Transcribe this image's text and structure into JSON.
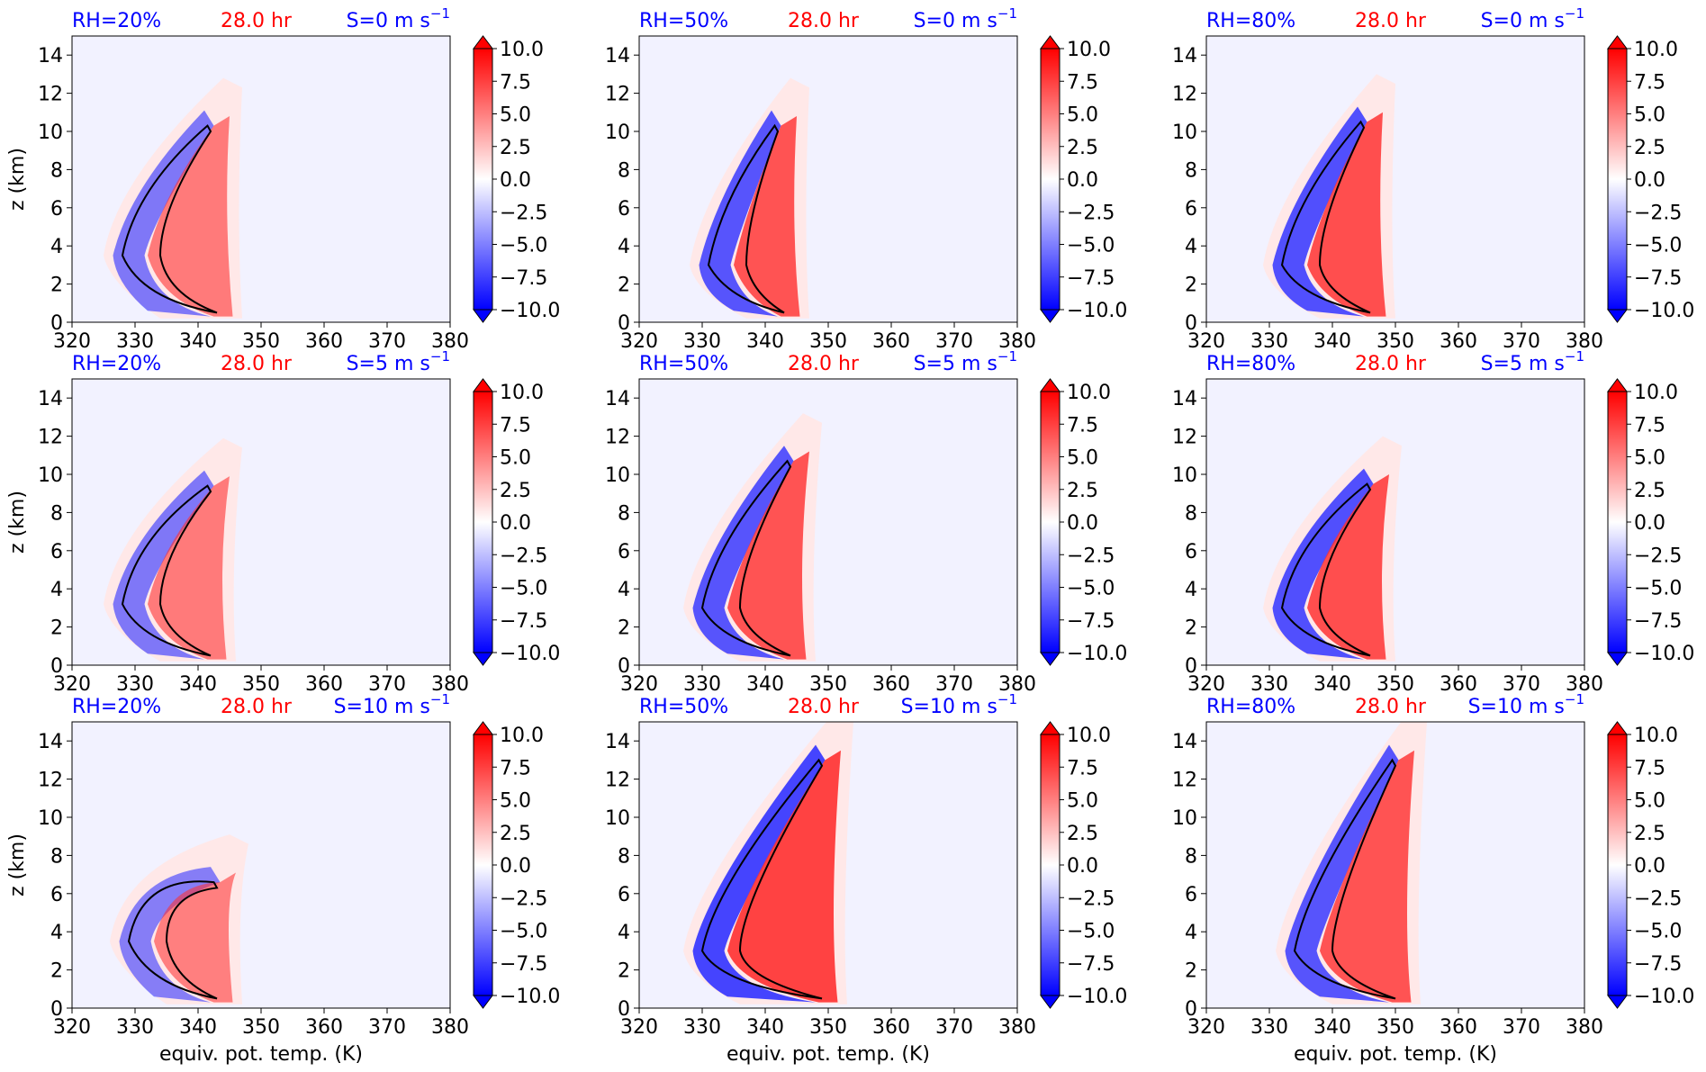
{
  "figure": {
    "xlabel": "equiv. pot. temp. (K)",
    "ylabel": "z (km)",
    "time_label": "28.0 hr",
    "colors": {
      "rh": "#0000ff",
      "time": "#ff0000",
      "shear": "#0000ff",
      "contour": "#000000"
    }
  },
  "colorbar": {
    "ticks": [
      "10.0",
      "7.5",
      "5.0",
      "2.5",
      "0.0",
      "−2.5",
      "−5.0",
      "−7.5",
      "−10.0"
    ],
    "levels": [
      10,
      7.5,
      5,
      2.5,
      0,
      -2.5,
      -5,
      -7.5,
      -10
    ],
    "colormap": "bwr",
    "extend": "both"
  },
  "axes": {
    "xticks": [
      "320",
      "330",
      "340",
      "350",
      "360",
      "370",
      "380"
    ],
    "yticks": [
      "0",
      "2",
      "4",
      "6",
      "8",
      "10",
      "12",
      "14"
    ],
    "xlim": [
      320,
      380
    ],
    "ylim": [
      0,
      15
    ]
  },
  "panels": [
    {
      "rh_label": "RH=20%",
      "shear_label": "S=0 m s",
      "shear_exp": "−1"
    },
    {
      "rh_label": "RH=50%",
      "shear_label": "S=0 m s",
      "shear_exp": "−1"
    },
    {
      "rh_label": "RH=80%",
      "shear_label": "S=0 m s",
      "shear_exp": "−1"
    },
    {
      "rh_label": "RH=20%",
      "shear_label": "S=5 m s",
      "shear_exp": "−1"
    },
    {
      "rh_label": "RH=50%",
      "shear_label": "S=5 m s",
      "shear_exp": "−1"
    },
    {
      "rh_label": "RH=80%",
      "shear_label": "S=5 m s",
      "shear_exp": "−1"
    },
    {
      "rh_label": "RH=20%",
      "shear_label": "S=10 m s",
      "shear_exp": "−1"
    },
    {
      "rh_label": "RH=50%",
      "shear_label": "S=10 m s",
      "shear_exp": "−1"
    },
    {
      "rh_label": "RH=80%",
      "shear_label": "S=10 m s",
      "shear_exp": "−1"
    }
  ],
  "chart_data": {
    "type": "heatmap",
    "grid": {
      "rows": 3,
      "cols": 3
    },
    "x_range": [
      320,
      380
    ],
    "y_range": [
      0,
      15
    ],
    "color_range": [
      -10,
      10
    ],
    "panels": [
      {
        "rh": 20,
        "shear": 0,
        "peak_z": 3.5,
        "theta_min": 328,
        "theta_max": 342,
        "top_z": 10.3,
        "intensity": 0.5
      },
      {
        "rh": 50,
        "shear": 0,
        "peak_z": 3.0,
        "theta_min": 331,
        "theta_max": 342,
        "top_z": 10.3,
        "intensity": 0.85
      },
      {
        "rh": 80,
        "shear": 0,
        "peak_z": 3.0,
        "theta_min": 332,
        "theta_max": 345,
        "top_z": 10.5,
        "intensity": 0.9
      },
      {
        "rh": 20,
        "shear": 5,
        "peak_z": 3.2,
        "theta_min": 328,
        "theta_max": 341,
        "top_z": 9.4,
        "intensity": 0.5
      },
      {
        "rh": 50,
        "shear": 5,
        "peak_z": 3.0,
        "theta_min": 330,
        "theta_max": 343,
        "top_z": 10.7,
        "intensity": 0.85
      },
      {
        "rh": 80,
        "shear": 5,
        "peak_z": 3.0,
        "theta_min": 332,
        "theta_max": 345,
        "top_z": 9.5,
        "intensity": 0.9
      },
      {
        "rh": 20,
        "shear": 10,
        "peak_z": 3.5,
        "theta_min": 329,
        "theta_max": 342,
        "top_z": 6.6,
        "intensity": 0.45
      },
      {
        "rh": 50,
        "shear": 10,
        "peak_z": 3.0,
        "theta_min": 330,
        "theta_max": 348,
        "top_z": 13.0,
        "intensity": 1.0
      },
      {
        "rh": 80,
        "shear": 10,
        "peak_z": 3.0,
        "theta_min": 334,
        "theta_max": 349,
        "top_z": 13.0,
        "intensity": 0.85
      }
    ]
  }
}
